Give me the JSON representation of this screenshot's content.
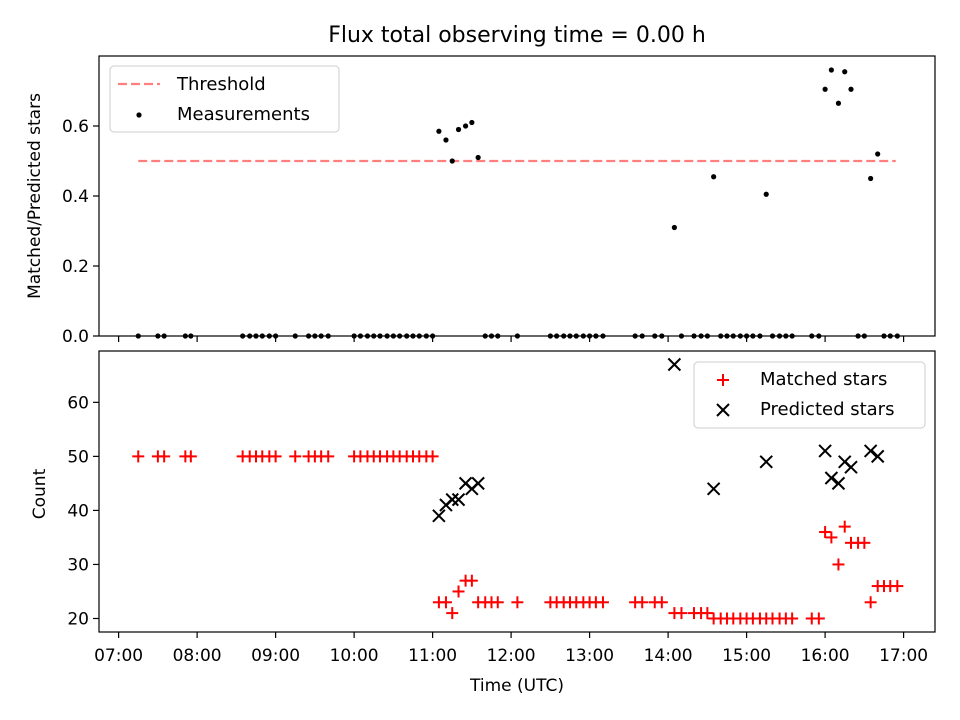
{
  "chart_data": [
    {
      "type": "scatter",
      "title": "Flux total observing time = 0.00 h",
      "xlabel": "",
      "ylabel": "Matched/Predicted stars",
      "xlim": [
        6.75,
        17.4
      ],
      "ylim": [
        0,
        0.8
      ],
      "yticks": [
        "0.0",
        "0.2",
        "0.4",
        "0.6"
      ],
      "legend_position": "top-left",
      "threshold": {
        "name": "Threshold",
        "value": 0.5,
        "x_start": 7.25,
        "x_end": 16.9,
        "color": "#ff7f7f"
      },
      "series": [
        {
          "name": "Measurements",
          "color": "#000000",
          "points": [
            [
              7.25,
              0
            ],
            [
              7.5,
              0
            ],
            [
              7.58,
              0
            ],
            [
              7.85,
              0
            ],
            [
              7.92,
              0
            ],
            [
              8.58,
              0
            ],
            [
              8.67,
              0
            ],
            [
              8.75,
              0
            ],
            [
              8.83,
              0
            ],
            [
              8.92,
              0
            ],
            [
              9.0,
              0
            ],
            [
              9.25,
              0
            ],
            [
              9.42,
              0
            ],
            [
              9.5,
              0
            ],
            [
              9.58,
              0
            ],
            [
              9.67,
              0
            ],
            [
              10.0,
              0
            ],
            [
              10.08,
              0
            ],
            [
              10.17,
              0
            ],
            [
              10.25,
              0
            ],
            [
              10.33,
              0
            ],
            [
              10.42,
              0
            ],
            [
              10.5,
              0
            ],
            [
              10.58,
              0
            ],
            [
              10.67,
              0
            ],
            [
              10.75,
              0
            ],
            [
              10.83,
              0
            ],
            [
              10.92,
              0
            ],
            [
              11.0,
              0
            ],
            [
              11.08,
              0.585
            ],
            [
              11.17,
              0.56
            ],
            [
              11.25,
              0.5
            ],
            [
              11.33,
              0.59
            ],
            [
              11.42,
              0.6
            ],
            [
              11.5,
              0.61
            ],
            [
              11.58,
              0.51
            ],
            [
              11.67,
              0
            ],
            [
              11.75,
              0
            ],
            [
              11.83,
              0
            ],
            [
              12.08,
              0
            ],
            [
              12.5,
              0
            ],
            [
              12.58,
              0
            ],
            [
              12.67,
              0
            ],
            [
              12.75,
              0
            ],
            [
              12.83,
              0
            ],
            [
              12.92,
              0
            ],
            [
              13.0,
              0
            ],
            [
              13.08,
              0
            ],
            [
              13.17,
              0
            ],
            [
              13.58,
              0
            ],
            [
              13.67,
              0
            ],
            [
              13.83,
              0
            ],
            [
              13.92,
              0
            ],
            [
              14.08,
              0.31
            ],
            [
              14.17,
              0
            ],
            [
              14.33,
              0
            ],
            [
              14.42,
              0
            ],
            [
              14.5,
              0
            ],
            [
              14.58,
              0.455
            ],
            [
              14.67,
              0
            ],
            [
              14.75,
              0
            ],
            [
              14.83,
              0
            ],
            [
              14.92,
              0
            ],
            [
              15.0,
              0
            ],
            [
              15.08,
              0
            ],
            [
              15.17,
              0
            ],
            [
              15.25,
              0.405
            ],
            [
              15.33,
              0
            ],
            [
              15.42,
              0
            ],
            [
              15.5,
              0
            ],
            [
              15.58,
              0
            ],
            [
              15.83,
              0
            ],
            [
              15.92,
              0
            ],
            [
              16.0,
              0.705
            ],
            [
              16.08,
              0.76
            ],
            [
              16.17,
              0.665
            ],
            [
              16.25,
              0.755
            ],
            [
              16.33,
              0.705
            ],
            [
              16.42,
              0
            ],
            [
              16.5,
              0
            ],
            [
              16.58,
              0.45
            ],
            [
              16.67,
              0.52
            ],
            [
              16.75,
              0
            ],
            [
              16.83,
              0
            ],
            [
              16.92,
              0
            ]
          ]
        }
      ]
    },
    {
      "type": "scatter",
      "title": "",
      "xlabel": "Time (UTC)",
      "ylabel": "Count",
      "xlim": [
        6.75,
        17.4
      ],
      "ylim": [
        17.5,
        69.5
      ],
      "yticks": [
        "20",
        "30",
        "40",
        "50",
        "60"
      ],
      "xticks": [
        {
          "value": 7,
          "label": "07:00"
        },
        {
          "value": 8,
          "label": "08:00"
        },
        {
          "value": 9,
          "label": "09:00"
        },
        {
          "value": 10,
          "label": "10:00"
        },
        {
          "value": 11,
          "label": "11:00"
        },
        {
          "value": 12,
          "label": "12:00"
        },
        {
          "value": 13,
          "label": "13:00"
        },
        {
          "value": 14,
          "label": "14:00"
        },
        {
          "value": 15,
          "label": "15:00"
        },
        {
          "value": 16,
          "label": "16:00"
        },
        {
          "value": 17,
          "label": "17:00"
        }
      ],
      "legend_position": "top-right",
      "series": [
        {
          "name": "Matched stars",
          "marker": "plus",
          "color": "#ff0000",
          "points": [
            [
              7.25,
              50
            ],
            [
              7.5,
              50
            ],
            [
              7.58,
              50
            ],
            [
              7.85,
              50
            ],
            [
              7.92,
              50
            ],
            [
              8.58,
              50
            ],
            [
              8.67,
              50
            ],
            [
              8.75,
              50
            ],
            [
              8.83,
              50
            ],
            [
              8.92,
              50
            ],
            [
              9.0,
              50
            ],
            [
              9.25,
              50
            ],
            [
              9.42,
              50
            ],
            [
              9.5,
              50
            ],
            [
              9.58,
              50
            ],
            [
              9.67,
              50
            ],
            [
              10.0,
              50
            ],
            [
              10.08,
              50
            ],
            [
              10.17,
              50
            ],
            [
              10.25,
              50
            ],
            [
              10.33,
              50
            ],
            [
              10.42,
              50
            ],
            [
              10.5,
              50
            ],
            [
              10.58,
              50
            ],
            [
              10.67,
              50
            ],
            [
              10.75,
              50
            ],
            [
              10.83,
              50
            ],
            [
              10.92,
              50
            ],
            [
              11.0,
              50
            ],
            [
              11.08,
              23
            ],
            [
              11.17,
              23
            ],
            [
              11.25,
              21
            ],
            [
              11.33,
              25
            ],
            [
              11.42,
              27
            ],
            [
              11.5,
              27
            ],
            [
              11.58,
              23
            ],
            [
              11.67,
              23
            ],
            [
              11.75,
              23
            ],
            [
              11.83,
              23
            ],
            [
              12.08,
              23
            ],
            [
              12.5,
              23
            ],
            [
              12.58,
              23
            ],
            [
              12.67,
              23
            ],
            [
              12.75,
              23
            ],
            [
              12.83,
              23
            ],
            [
              12.92,
              23
            ],
            [
              13.0,
              23
            ],
            [
              13.08,
              23
            ],
            [
              13.17,
              23
            ],
            [
              13.58,
              23
            ],
            [
              13.67,
              23
            ],
            [
              13.83,
              23
            ],
            [
              13.92,
              23
            ],
            [
              14.08,
              21
            ],
            [
              14.17,
              21
            ],
            [
              14.33,
              21
            ],
            [
              14.42,
              21
            ],
            [
              14.5,
              21
            ],
            [
              14.58,
              20
            ],
            [
              14.67,
              20
            ],
            [
              14.75,
              20
            ],
            [
              14.83,
              20
            ],
            [
              14.92,
              20
            ],
            [
              15.0,
              20
            ],
            [
              15.08,
              20
            ],
            [
              15.17,
              20
            ],
            [
              15.25,
              20
            ],
            [
              15.33,
              20
            ],
            [
              15.42,
              20
            ],
            [
              15.5,
              20
            ],
            [
              15.58,
              20
            ],
            [
              15.83,
              20
            ],
            [
              15.92,
              20
            ],
            [
              16.0,
              36
            ],
            [
              16.08,
              35
            ],
            [
              16.17,
              30
            ],
            [
              16.25,
              37
            ],
            [
              16.33,
              34
            ],
            [
              16.42,
              34
            ],
            [
              16.5,
              34
            ],
            [
              16.58,
              23
            ],
            [
              16.67,
              26
            ],
            [
              16.75,
              26
            ],
            [
              16.83,
              26
            ],
            [
              16.92,
              26
            ]
          ]
        },
        {
          "name": "Predicted stars",
          "marker": "x",
          "color": "#000000",
          "points": [
            [
              11.08,
              39
            ],
            [
              11.17,
              41
            ],
            [
              11.25,
              42
            ],
            [
              11.33,
              42
            ],
            [
              11.42,
              45
            ],
            [
              11.5,
              44
            ],
            [
              11.58,
              45
            ],
            [
              14.08,
              67
            ],
            [
              14.58,
              44
            ],
            [
              15.25,
              49
            ],
            [
              16.0,
              51
            ],
            [
              16.08,
              46
            ],
            [
              16.17,
              45
            ],
            [
              16.25,
              49
            ],
            [
              16.33,
              48
            ],
            [
              16.58,
              51
            ],
            [
              16.67,
              50
            ]
          ]
        }
      ]
    }
  ]
}
